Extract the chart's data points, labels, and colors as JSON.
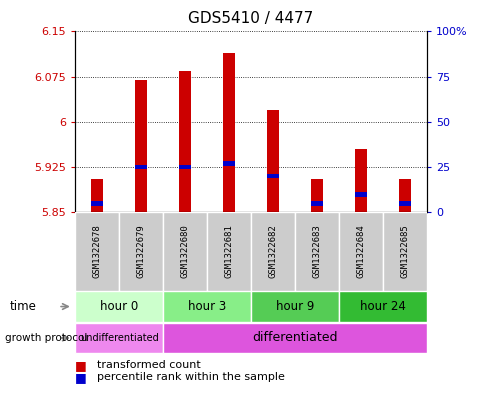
{
  "title": "GDS5410 / 4477",
  "samples": [
    "GSM1322678",
    "GSM1322679",
    "GSM1322680",
    "GSM1322681",
    "GSM1322682",
    "GSM1322683",
    "GSM1322684",
    "GSM1322685"
  ],
  "transformed_counts": [
    5.905,
    6.07,
    6.085,
    6.115,
    6.02,
    5.905,
    5.955,
    5.905
  ],
  "percentile_ranks": [
    5,
    25,
    25,
    27,
    20,
    5,
    10,
    5
  ],
  "bar_bottom": 5.85,
  "ylim": [
    5.85,
    6.15
  ],
  "yticks": [
    5.85,
    5.925,
    6.0,
    6.075,
    6.15
  ],
  "ytick_labels": [
    "5.85",
    "5.925",
    "6",
    "6.075",
    "6.15"
  ],
  "right_yticks": [
    0,
    25,
    50,
    75,
    100
  ],
  "right_ytick_labels": [
    "0",
    "25",
    "50",
    "75",
    "100%"
  ],
  "bar_color": "#cc0000",
  "percentile_color": "#0000cc",
  "time_groups": [
    {
      "label": "hour 0",
      "start": 0,
      "end": 2,
      "color": "#ccffcc"
    },
    {
      "label": "hour 3",
      "start": 2,
      "end": 4,
      "color": "#88ee88"
    },
    {
      "label": "hour 9",
      "start": 4,
      "end": 6,
      "color": "#55cc55"
    },
    {
      "label": "hour 24",
      "start": 6,
      "end": 8,
      "color": "#33bb33"
    }
  ],
  "growth_groups": [
    {
      "label": "undifferentiated",
      "start": 0,
      "end": 2,
      "color": "#ee88ee"
    },
    {
      "label": "differentiated",
      "start": 2,
      "end": 8,
      "color": "#dd55dd"
    }
  ],
  "left_label_color": "#cc0000",
  "right_label_color": "#0000cc",
  "sample_bg_color": "#cccccc",
  "legend_items": [
    {
      "color": "#cc0000",
      "label": "transformed count"
    },
    {
      "color": "#0000cc",
      "label": "percentile rank within the sample"
    }
  ]
}
